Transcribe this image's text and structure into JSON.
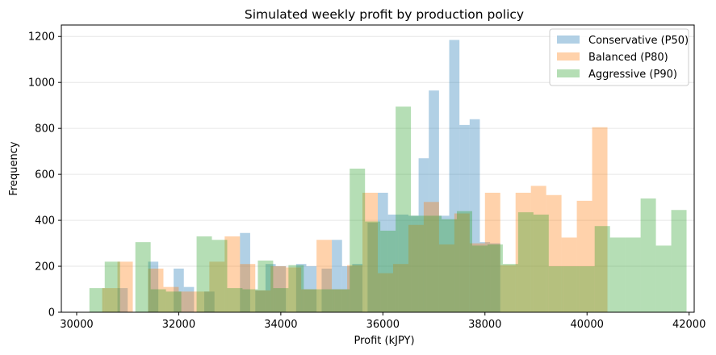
{
  "chart_data": {
    "type": "histogram",
    "title": "Simulated weekly profit by production policy",
    "xlabel": "Profit (kJPY)",
    "ylabel": "Frequency",
    "xlim": [
      29700,
      42100
    ],
    "ylim": [
      0,
      1250
    ],
    "xticks": [
      30000,
      32000,
      34000,
      36000,
      38000,
      40000,
      42000
    ],
    "yticks": [
      0,
      200,
      400,
      600,
      800,
      1000,
      1200
    ],
    "grid": "horizontal",
    "legend_position": "top-right",
    "series": [
      {
        "name": "Conservative (P50)",
        "color": "#1f77b4",
        "opacity": 0.35,
        "bin_width": 200,
        "bins": [
          [
            30800,
            105
          ],
          [
            31400,
            220
          ],
          [
            31900,
            190
          ],
          [
            32100,
            110
          ],
          [
            32500,
            90
          ],
          [
            33200,
            345
          ],
          [
            33500,
            95
          ],
          [
            33700,
            210
          ],
          [
            33900,
            200
          ],
          [
            34300,
            210
          ],
          [
            34500,
            200
          ],
          [
            34800,
            190
          ],
          [
            35000,
            315
          ],
          [
            35200,
            200
          ],
          [
            35400,
            210
          ],
          [
            35700,
            390
          ],
          [
            35900,
            520
          ],
          [
            36100,
            425
          ],
          [
            36300,
            425
          ],
          [
            36500,
            420
          ],
          [
            36700,
            670
          ],
          [
            36900,
            965
          ],
          [
            37100,
            420
          ],
          [
            37300,
            1185
          ],
          [
            37500,
            815
          ],
          [
            37700,
            840
          ],
          [
            37900,
            305
          ],
          [
            38100,
            300
          ]
        ]
      },
      {
        "name": "Balanced (P80)",
        "color": "#ff7f0e",
        "opacity": 0.35,
        "bin_width": 300,
        "bins": [
          [
            30500,
            105
          ],
          [
            30800,
            220
          ],
          [
            31100,
            0
          ],
          [
            31400,
            190
          ],
          [
            31700,
            110
          ],
          [
            32000,
            90
          ],
          [
            32300,
            90
          ],
          [
            32600,
            220
          ],
          [
            32900,
            330
          ],
          [
            33200,
            210
          ],
          [
            33500,
            95
          ],
          [
            33800,
            200
          ],
          [
            34100,
            195
          ],
          [
            34400,
            100
          ],
          [
            34700,
            315
          ],
          [
            35000,
            100
          ],
          [
            35300,
            205
          ],
          [
            35600,
            520
          ],
          [
            35900,
            170
          ],
          [
            36200,
            210
          ],
          [
            36500,
            380
          ],
          [
            36800,
            480
          ],
          [
            37100,
            295
          ],
          [
            37400,
            430
          ],
          [
            37700,
            300
          ],
          [
            38000,
            520
          ],
          [
            38300,
            205
          ],
          [
            38600,
            520
          ],
          [
            38900,
            550
          ],
          [
            39200,
            510
          ],
          [
            39500,
            325
          ],
          [
            39800,
            485
          ],
          [
            40100,
            805
          ]
        ]
      },
      {
        "name": "Aggressive (P90)",
        "color": "#2ca02c",
        "opacity": 0.35,
        "bin_width": 300,
        "bins": [
          [
            30250,
            105
          ],
          [
            30550,
            220
          ],
          [
            30850,
            0
          ],
          [
            31150,
            305
          ],
          [
            31450,
            100
          ],
          [
            31750,
            90
          ],
          [
            32050,
            0
          ],
          [
            32350,
            330
          ],
          [
            32650,
            315
          ],
          [
            32950,
            105
          ],
          [
            33250,
            100
          ],
          [
            33550,
            225
          ],
          [
            33850,
            105
          ],
          [
            34150,
            205
          ],
          [
            34450,
            100
          ],
          [
            34750,
            100
          ],
          [
            35050,
            100
          ],
          [
            35350,
            625
          ],
          [
            35650,
            395
          ],
          [
            35950,
            355
          ],
          [
            36250,
            895
          ],
          [
            36550,
            420
          ],
          [
            36850,
            420
          ],
          [
            37150,
            405
          ],
          [
            37450,
            440
          ],
          [
            37750,
            290
          ],
          [
            38050,
            295
          ],
          [
            38350,
            210
          ],
          [
            38650,
            435
          ],
          [
            38950,
            425
          ],
          [
            39250,
            200
          ],
          [
            39550,
            200
          ],
          [
            39850,
            200
          ],
          [
            40150,
            375
          ],
          [
            40450,
            325
          ],
          [
            40750,
            325
          ],
          [
            41050,
            495
          ],
          [
            41350,
            290
          ],
          [
            41650,
            445
          ]
        ]
      }
    ]
  }
}
